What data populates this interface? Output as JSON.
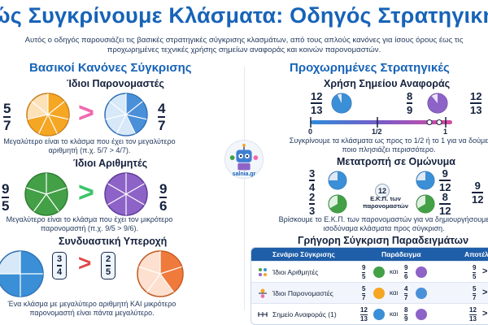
{
  "title": "ώς Συγκρίνουμε Κλάσματα: Οδηγός Στρατηγική",
  "intro": "Αυτός ο οδηγός παρουσιάζει τις βασικές στρατηγικές σύγκρισης κλασμάτων, από τους απλούς κανόνες για ίσους όρους έως τις προχωρημένες τεχνικές χρήσης σημείων αναφοράς και κοινών παρονομαστών.",
  "left": {
    "heading": "Βασικοί Κανόνες Σύγκρισης",
    "same_denominators": {
      "heading": "Ίδιοι Παρονομαστές",
      "left_fraction": {
        "n": "5",
        "d": "7"
      },
      "right_fraction": {
        "n": "4",
        "d": "7"
      },
      "symbol": ">",
      "caption": "Μεγαλύτερο είναι το κλάσμα που έχει τον μεγαλύτερο αριθμητή (π.χ. 5/7 > 4/7).",
      "colors": {
        "left": "#f5a623",
        "right": "#4a90d9",
        "symbol": "#f06ab0"
      }
    },
    "same_numerators": {
      "heading": "Ίδιοι Αριθμητές",
      "left_fraction": {
        "n": "9",
        "d": "5"
      },
      "right_fraction": {
        "n": "9",
        "d": "6"
      },
      "symbol": ">",
      "caption": "Μεγαλύτερο είναι το κλάσμα που έχει τον μικρότερο παρονομαστή (π.χ. 9/5 > 9/6).",
      "colors": {
        "left": "#43a047",
        "right": "#8e63c7",
        "symbol": "#3cc46a"
      }
    },
    "combined": {
      "heading": "Συνδυαστική Υπεροχή",
      "left_fraction": {
        "n": "3",
        "d": "4"
      },
      "right_fraction": {
        "n": "2",
        "d": "5"
      },
      "symbol": ">",
      "caption": "Ένα κλάσμα με μεγαλύτερο αριθμητή ΚΑΙ μικρότερο παρονομαστή είναι πάντα μεγαλύτερο.",
      "colors": {
        "left": "#3a8fd6",
        "right": "#f07a3c",
        "symbol": "#e04848"
      }
    }
  },
  "mascot_label": "salnia.gr",
  "right": {
    "heading": "Προχωρημένες Στρατηγικές",
    "benchmark": {
      "heading": "Χρήση Σημείου Αναφοράς",
      "fraction_a": {
        "n": "12",
        "d": "13"
      },
      "fraction_b": {
        "n": "8",
        "d": "9"
      },
      "fraction_c": {
        "n": "12",
        "d": "13"
      },
      "ticks": [
        "0",
        "1/2",
        "1"
      ],
      "caption": "Συγκρίνουμε τα κλάσματα ως προς το 1/2 ή το 1 για να δούμε ποιο πλησιάζει περισσότερο."
    },
    "common_denominator": {
      "heading": "Μετατροπή σε Ομώνυμα",
      "left_top": {
        "n": "3",
        "d": "4"
      },
      "left_bottom": {
        "n": "2",
        "d": "3"
      },
      "right_top": {
        "n": "9",
        "d": "12"
      },
      "right_bottom": {
        "n": "8",
        "d": "12"
      },
      "result": {
        "n": "9",
        "d": "12"
      },
      "lcm_number": "12",
      "lcm_label": "Ε.Κ.Π. των παρονομαστών",
      "caption": "Βρίσκουμε το Ε.Κ.Π. των παρονομαστών για να δημιουργήσουμε ισοδύναμα κλάσματα προς σύγκριση."
    },
    "quick_table": {
      "heading": "Γρήγορη Σύγκριση Παραδειγμάτων",
      "columns": [
        "Σενάριο Σύγκρισης",
        "Παράδειγμα",
        "Αποτέλ"
      ],
      "connector": "και",
      "rows": [
        {
          "label": "Ίδιοι Αριθμητές",
          "a": {
            "n": "9",
            "d": "5"
          },
          "b": {
            "n": "9",
            "d": "6"
          },
          "r": {
            "n": "9",
            "d": "5"
          },
          "symbol": ">"
        },
        {
          "label": "Ίδιοι Παρονομαστές",
          "a": {
            "n": "5",
            "d": "7"
          },
          "b": {
            "n": "4",
            "d": "7"
          },
          "r": {
            "n": "5",
            "d": "7"
          },
          "symbol": ">"
        },
        {
          "label": "Σημείο Αναφοράς (1)",
          "a": {
            "n": "12",
            "d": "13"
          },
          "b": {
            "n": "8",
            "d": "9"
          },
          "r": {
            "n": "12",
            "d": "13"
          },
          "symbol": ">"
        }
      ]
    }
  }
}
